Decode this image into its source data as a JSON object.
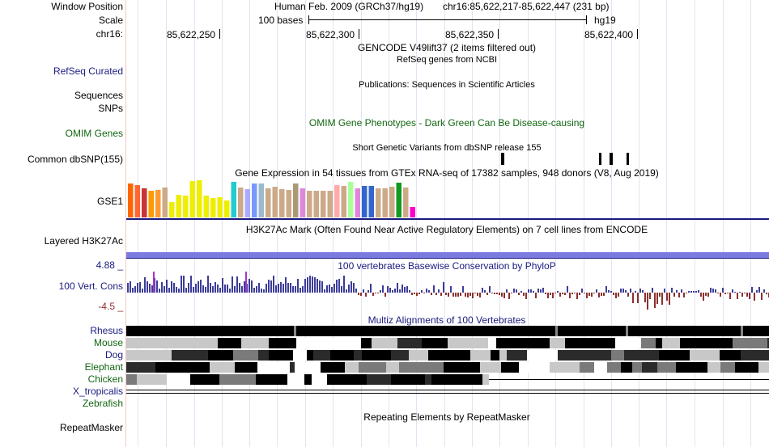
{
  "header": {
    "assembly": "Human Feb. 2009 (GRCh37/hg19)",
    "position": "chr16:85,622,217-85,622,447 (231 bp)",
    "scale_text": "100 bases",
    "db": "hg19",
    "ticks": [
      "85,622,250",
      "85,622,300",
      "85,622,350",
      "85,622,400"
    ]
  },
  "side_labels": {
    "window_position": "Window Position",
    "scale": "Scale",
    "chrom": "chr16:",
    "refseq": "RefSeq Curated",
    "sequences": "Sequences",
    "snps": "SNPs",
    "omim": "OMIM Genes",
    "dbsnp": "Common dbSNP(155)",
    "gse": "GSE1",
    "h3k27": "Layered H3K27Ac",
    "cons_max": "4.88 _",
    "cons": "100 Vert. Cons",
    "cons_min": "-4.5 _",
    "repeat": "RepeatMasker"
  },
  "species": [
    "Rhesus",
    "Mouse",
    "Dog",
    "Elephant",
    "Chicken",
    "X_tropicalis",
    "Zebrafish"
  ],
  "tracks": {
    "gencode": "GENCODE V49lift37 (2 items filtered out)",
    "refseq": "RefSeq genes from NCBI",
    "pubs": "Publications: Sequences in Scientific Articles",
    "omim": "OMIM Gene Phenotypes - Dark Green Can Be Disease-causing",
    "snp155": "Short Genetic Variants from dbSNP release 155",
    "gtex": "Gene Expression in 54 tissues from GTEx RNA-seq of 17382 samples, 948 donors (V8, Aug 2019)",
    "h3k27": "H3K27Ac Mark (Often Found Near Active Regulatory Elements) on 7 cell lines from ENCODE",
    "phylop": "100 vertebrates Basewise Conservation by PhyloP",
    "multiz": "Multiz Alignments of 100 Vertebrates",
    "rmsk": "Repeating Elements by RepeatMasker"
  },
  "gtex_bars": [
    {
      "c": "#ff6600",
      "h": 0.92
    },
    {
      "c": "#ff6633",
      "h": 0.88
    },
    {
      "c": "#cc3333",
      "h": 0.78
    },
    {
      "c": "#ff9900",
      "h": 0.72
    },
    {
      "c": "#ff9933",
      "h": 0.74
    },
    {
      "c": "#ccaa88",
      "h": 0.8
    },
    {
      "c": "#eeee00",
      "h": 0.42
    },
    {
      "c": "#eeee00",
      "h": 0.6
    },
    {
      "c": "#eeee00",
      "h": 0.58
    },
    {
      "c": "#eeee00",
      "h": 0.98
    },
    {
      "c": "#eeee00",
      "h": 1.0
    },
    {
      "c": "#eeee00",
      "h": 0.58
    },
    {
      "c": "#eeee00",
      "h": 0.52
    },
    {
      "c": "#eeee00",
      "h": 0.55
    },
    {
      "c": "#eeee00",
      "h": 0.45
    },
    {
      "c": "#22cccc",
      "h": 0.96
    },
    {
      "c": "#ccaa88",
      "h": 0.8
    },
    {
      "c": "#aaaaff",
      "h": 0.76
    },
    {
      "c": "#7799ff",
      "h": 0.92
    },
    {
      "c": "#99bbcc",
      "h": 0.92
    },
    {
      "c": "#ccaa88",
      "h": 0.78
    },
    {
      "c": "#ccaa88",
      "h": 0.82
    },
    {
      "c": "#ccaa88",
      "h": 0.75
    },
    {
      "c": "#ccaa88",
      "h": 0.74
    },
    {
      "c": "#aa9977",
      "h": 0.92
    },
    {
      "c": "#dd88dd",
      "h": 0.78
    },
    {
      "c": "#ccaa88",
      "h": 0.72
    },
    {
      "c": "#ccaa88",
      "h": 0.72
    },
    {
      "c": "#ccaa88",
      "h": 0.72
    },
    {
      "c": "#ccaa88",
      "h": 0.72
    },
    {
      "c": "#ffaaaa",
      "h": 0.88
    },
    {
      "c": "#ccaa88",
      "h": 0.84
    },
    {
      "c": "#aaff99",
      "h": 0.96
    },
    {
      "c": "#dd88dd",
      "h": 0.78
    },
    {
      "c": "#3366cc",
      "h": 0.84
    },
    {
      "c": "#3366cc",
      "h": 0.84
    },
    {
      "c": "#ccaa88",
      "h": 0.78
    },
    {
      "c": "#ccaa88",
      "h": 0.78
    },
    {
      "c": "#ccaa88",
      "h": 0.82
    },
    {
      "c": "#119922",
      "h": 0.94
    },
    {
      "c": "#ccaa88",
      "h": 0.8
    },
    {
      "c": "#ff00cc",
      "h": 0.28
    }
  ],
  "colors": {
    "grid": "#e3e3f3",
    "side_border": "#f3c7c7",
    "gtex_base": "#1a1a80",
    "h3k27": "#7a7ae0",
    "cons_pos": "#3c3c98",
    "cons_neg": "#8c3030",
    "label_blue": "#1a1a80",
    "label_green": "#116611"
  }
}
